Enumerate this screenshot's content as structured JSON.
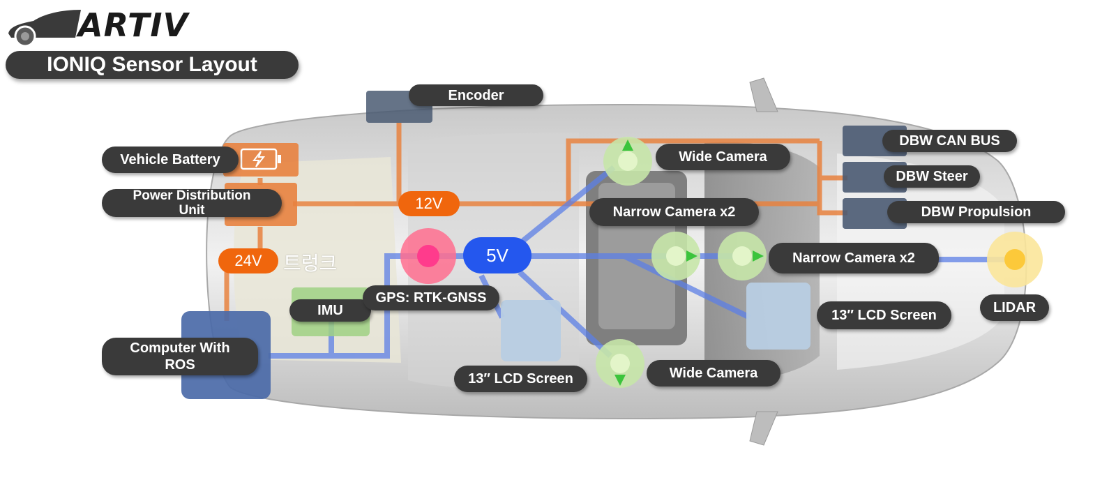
{
  "brand": {
    "name": "ARTIV"
  },
  "title": "IONIQ Sensor Layout",
  "colors": {
    "power_line": "#e8823f",
    "data_line": "#5c7fe6",
    "label_bg": "#3a3a3a",
    "orange_badge": "#f0660d",
    "blue_badge": "#2457ee",
    "gps_marker": "#ff6f8f",
    "camera_disc": "#c6e6a8",
    "lidar_disc": "#fbe59a",
    "screen_box": "#b8cde3",
    "dbw_box": "#4a5a72",
    "computer_box": "#4b6aa8"
  },
  "voltages": {
    "v12": "12V",
    "v24": "24V",
    "v5": "5V"
  },
  "trunk_label": "트렁크",
  "labels": {
    "encoder": "Encoder",
    "vehicle_battery": "Vehicle Battery",
    "pdu": "Power Distribution\nUnit",
    "computer": "Computer With\nROS",
    "imu": "IMU",
    "gps": "GPS: RTK-GNSS",
    "wide_camera_top": "Wide Camera",
    "wide_camera_bottom": "Wide Camera",
    "narrow_camera_top": "Narrow Camera x2",
    "narrow_camera_mid": "Narrow Camera x2",
    "lcd_left": "13″ LCD Screen",
    "lcd_right": "13″ LCD Screen",
    "dbw_can": "DBW CAN BUS",
    "dbw_steer": "DBW Steer",
    "dbw_propulsion": "DBW Propulsion",
    "lidar": "LIDAR"
  },
  "icons": {
    "battery": "battery-bolt-icon",
    "car_logo": "car-silhouette-icon"
  }
}
